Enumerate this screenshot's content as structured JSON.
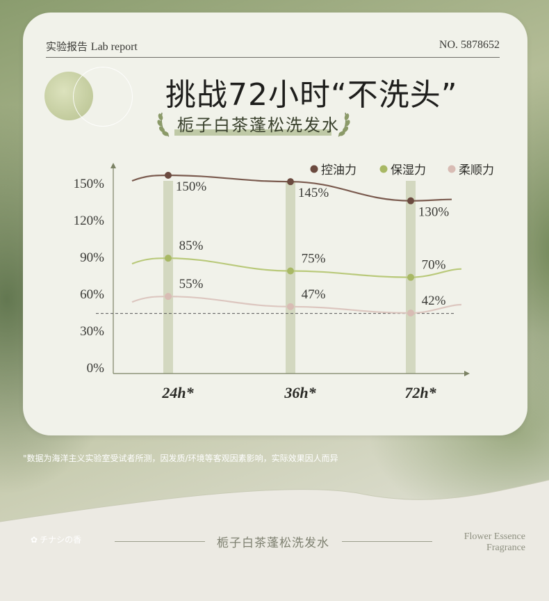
{
  "header": {
    "report_cn": "实验报告",
    "report_en": "Lab report",
    "report_no": "NO. 5878652"
  },
  "title": {
    "main": "挑战72小时“不洗头”",
    "product": "栀子白茶蓬松洗发水"
  },
  "chart_data": {
    "type": "line",
    "categories": [
      "24h*",
      "36h*",
      "72h*"
    ],
    "series": [
      {
        "name": "控油力",
        "values": [
          150,
          145,
          130
        ],
        "labels": [
          "150%",
          "145%",
          "130%"
        ],
        "color": "#6b4a3f"
      },
      {
        "name": "保湿力",
        "values": [
          85,
          75,
          70
        ],
        "labels": [
          "85%",
          "75%",
          "70%"
        ],
        "color": "#a8b864"
      },
      {
        "name": "柔顺力",
        "values": [
          55,
          47,
          42
        ],
        "labels": [
          "55%",
          "47%",
          "42%"
        ],
        "color": "#d8bcb4"
      }
    ],
    "y_ticks": [
      "0%",
      "30%",
      "60%",
      "90%",
      "120%",
      "150%"
    ],
    "ylim": [
      0,
      150
    ],
    "reference_line": 40,
    "legend_position": "top-right",
    "grid": false
  },
  "colors": {
    "oil_line": "#7a5a4e",
    "moist_line": "#b9c97a",
    "smooth_line": "#dcc6bf",
    "column": "#d3d8c0",
    "card": "#f1f2ea"
  },
  "footnote": "\"数据为海洋主义实验室受试者所测，因发质/环境等客观因素影响，实际效果因人而异",
  "footer": {
    "brand": "チナシの香",
    "center": "栀子白茶蓬松洗发水",
    "right_line1": "Flower Essence",
    "right_line2": "Fragrance"
  }
}
